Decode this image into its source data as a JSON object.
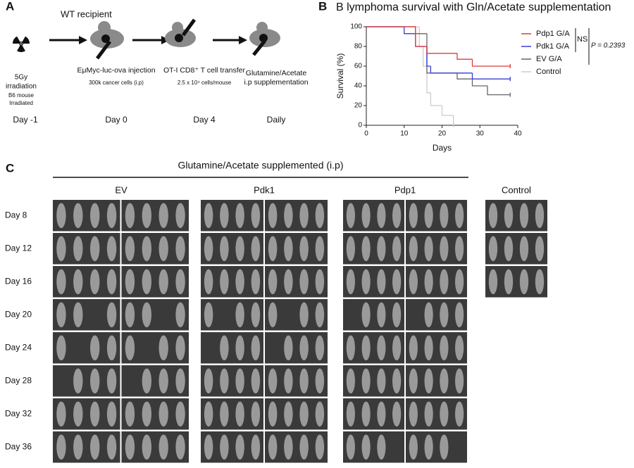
{
  "panel_labels": [
    "A",
    "B",
    "C"
  ],
  "panel_a": {
    "recipient": "WT recipient",
    "steps": [
      {
        "label": [
          "5Gy",
          "irradiation"
        ],
        "detail": [
          "B6 mouse",
          "Irradiated"
        ],
        "day": "Day -1"
      },
      {
        "label": [
          "EμMyc-luc-ova injection"
        ],
        "detail": [
          "300k cancer cells (i.p)"
        ],
        "day": "Day 0"
      },
      {
        "label": [
          "OT-I CD8⁺ T cell transfer"
        ],
        "detail": [
          "2.5 x 10⁴ cells/mouse"
        ],
        "day": "Day 4"
      },
      {
        "label": [
          "Glutamine/Acetate",
          "i.p supplementation"
        ],
        "detail": [],
        "day": "Daily"
      }
    ]
  },
  "chart_data": {
    "type": "survival",
    "title": "B lymphoma survival with Gln/Acetate supplementation",
    "x_label": "Days",
    "y_label": "Survival (%)",
    "xlim": [
      0,
      40
    ],
    "xticks": [
      0,
      10,
      20,
      30,
      40
    ],
    "ylim": [
      0,
      100
    ],
    "yticks": [
      0,
      20,
      40,
      60,
      80,
      100
    ],
    "series": [
      {
        "name": "Pdp1 G/A",
        "color": "#e0393b",
        "x": [
          0,
          13,
          16,
          24,
          28,
          38
        ],
        "values": [
          100,
          80,
          73,
          67,
          60,
          60
        ]
      },
      {
        "name": "Pdk1 G/A",
        "color": "#3a3ad8",
        "x": [
          0,
          10,
          13,
          16,
          17,
          28,
          38
        ],
        "values": [
          100,
          93,
          80,
          60,
          53,
          47,
          47
        ]
      },
      {
        "name": "EV G/A",
        "color": "#666666",
        "x": [
          0,
          13,
          16,
          24,
          28,
          32,
          38
        ],
        "values": [
          100,
          93,
          53,
          47,
          40,
          31,
          31
        ]
      },
      {
        "name": "Control",
        "color": "#cccccc",
        "x": [
          0,
          14,
          15,
          16,
          17,
          20,
          23
        ],
        "values": [
          100,
          80,
          60,
          33,
          20,
          10,
          0
        ]
      }
    ],
    "annotations": [
      "NS",
      "P = 0.2393"
    ]
  },
  "panel_c": {
    "title": "Glutamine/Acetate supplemented (i.p)",
    "groups": [
      "EV",
      "Pdk1",
      "Pdp1",
      "Control"
    ],
    "days": [
      "Day 8",
      "Day 12",
      "Day 16",
      "Day 20",
      "Day 24",
      "Day 28",
      "Day 32",
      "Day 36"
    ]
  }
}
